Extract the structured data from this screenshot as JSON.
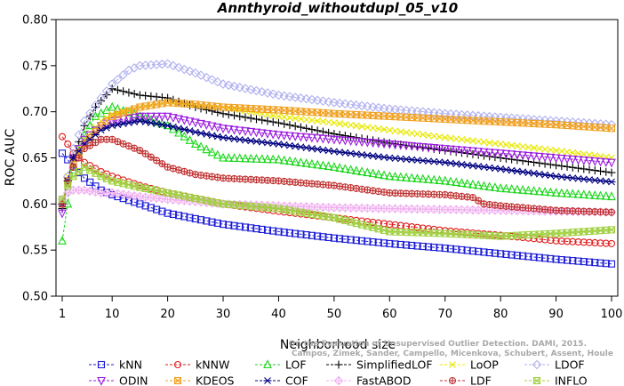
{
  "chart_data": {
    "type": "line",
    "title": "Annthyroid_withoutdupl_05_v10",
    "xlabel": "Neighborhood size",
    "ylabel": "ROC AUC",
    "xlim": [
      1,
      100
    ],
    "ylim": [
      0.5,
      0.8
    ],
    "xticks": [
      1,
      10,
      20,
      30,
      40,
      50,
      60,
      70,
      80,
      90,
      100
    ],
    "yticks": [
      "0.50",
      "0.55",
      "0.60",
      "0.65",
      "0.70",
      "0.75",
      "0.80"
    ],
    "grid": false,
    "legend_position": "bottom",
    "watermark": [
      "Campos, Zimek, Sander, Campello, Micenkova, Schubert, Assent, Houle",
      "On the Evaluation of Unsupervised Outlier Detection. DAMI, 2015."
    ],
    "series": [
      {
        "name": "kNN",
        "color": "#1a1ad6",
        "marker": "square",
        "points": [
          [
            1,
            0.655
          ],
          [
            2,
            0.648
          ],
          [
            3,
            0.64
          ],
          [
            5,
            0.628
          ],
          [
            8,
            0.615
          ],
          [
            10,
            0.61
          ],
          [
            15,
            0.6
          ],
          [
            20,
            0.59
          ],
          [
            30,
            0.578
          ],
          [
            40,
            0.57
          ],
          [
            50,
            0.563
          ],
          [
            60,
            0.557
          ],
          [
            70,
            0.552
          ],
          [
            80,
            0.546
          ],
          [
            90,
            0.54
          ],
          [
            100,
            0.535
          ]
        ]
      },
      {
        "name": "kNNW",
        "color": "#e01a1a",
        "marker": "circle",
        "points": [
          [
            1,
            0.673
          ],
          [
            2,
            0.665
          ],
          [
            3,
            0.655
          ],
          [
            5,
            0.645
          ],
          [
            8,
            0.635
          ],
          [
            10,
            0.63
          ],
          [
            15,
            0.62
          ],
          [
            20,
            0.612
          ],
          [
            30,
            0.6
          ],
          [
            40,
            0.592
          ],
          [
            50,
            0.585
          ],
          [
            60,
            0.578
          ],
          [
            70,
            0.571
          ],
          [
            80,
            0.566
          ],
          [
            90,
            0.56
          ],
          [
            100,
            0.557
          ]
        ]
      },
      {
        "name": "LOF",
        "color": "#1ad61a",
        "marker": "triangle-up",
        "points": [
          [
            1,
            0.56
          ],
          [
            2,
            0.6
          ],
          [
            3,
            0.64
          ],
          [
            5,
            0.675
          ],
          [
            7,
            0.695
          ],
          [
            10,
            0.705
          ],
          [
            15,
            0.695
          ],
          [
            20,
            0.685
          ],
          [
            25,
            0.665
          ],
          [
            30,
            0.65
          ],
          [
            40,
            0.648
          ],
          [
            50,
            0.64
          ],
          [
            60,
            0.63
          ],
          [
            70,
            0.625
          ],
          [
            80,
            0.617
          ],
          [
            90,
            0.612
          ],
          [
            100,
            0.608
          ]
        ]
      },
      {
        "name": "SimplifiedLOF",
        "color": "#000000",
        "marker": "plus",
        "points": [
          [
            1,
            0.595
          ],
          [
            2,
            0.625
          ],
          [
            3,
            0.65
          ],
          [
            5,
            0.685
          ],
          [
            7,
            0.705
          ],
          [
            10,
            0.725
          ],
          [
            15,
            0.718
          ],
          [
            20,
            0.715
          ],
          [
            25,
            0.705
          ],
          [
            30,
            0.698
          ],
          [
            40,
            0.688
          ],
          [
            50,
            0.676
          ],
          [
            60,
            0.666
          ],
          [
            70,
            0.658
          ],
          [
            80,
            0.65
          ],
          [
            90,
            0.642
          ],
          [
            100,
            0.634
          ]
        ]
      },
      {
        "name": "LoOP",
        "color": "#e8e800",
        "marker": "x",
        "points": [
          [
            1,
            0.6
          ],
          [
            2,
            0.63
          ],
          [
            3,
            0.65
          ],
          [
            5,
            0.67
          ],
          [
            8,
            0.69
          ],
          [
            10,
            0.697
          ],
          [
            15,
            0.705
          ],
          [
            20,
            0.71
          ],
          [
            30,
            0.705
          ],
          [
            40,
            0.695
          ],
          [
            50,
            0.688
          ],
          [
            60,
            0.68
          ],
          [
            70,
            0.672
          ],
          [
            80,
            0.665
          ],
          [
            90,
            0.658
          ],
          [
            100,
            0.65
          ]
        ]
      },
      {
        "name": "LDOF",
        "color": "#b0b0f0",
        "marker": "diamond",
        "points": [
          [
            1,
            0.6
          ],
          [
            2,
            0.63
          ],
          [
            3,
            0.66
          ],
          [
            5,
            0.69
          ],
          [
            8,
            0.715
          ],
          [
            10,
            0.73
          ],
          [
            13,
            0.745
          ],
          [
            15,
            0.75
          ],
          [
            20,
            0.752
          ],
          [
            25,
            0.742
          ],
          [
            30,
            0.73
          ],
          [
            40,
            0.718
          ],
          [
            50,
            0.71
          ],
          [
            60,
            0.703
          ],
          [
            70,
            0.698
          ],
          [
            80,
            0.694
          ],
          [
            90,
            0.69
          ],
          [
            100,
            0.686
          ]
        ]
      },
      {
        "name": "ODIN",
        "color": "#9a1ae0",
        "marker": "triangle-down",
        "points": [
          [
            1,
            0.59
          ],
          [
            2,
            0.625
          ],
          [
            3,
            0.65
          ],
          [
            5,
            0.67
          ],
          [
            8,
            0.685
          ],
          [
            10,
            0.69
          ],
          [
            15,
            0.695
          ],
          [
            20,
            0.695
          ],
          [
            30,
            0.682
          ],
          [
            40,
            0.675
          ],
          [
            50,
            0.67
          ],
          [
            60,
            0.665
          ],
          [
            70,
            0.66
          ],
          [
            80,
            0.655
          ],
          [
            90,
            0.65
          ],
          [
            100,
            0.645
          ]
        ]
      },
      {
        "name": "KDEOS",
        "color": "#f0a020",
        "marker": "square-x",
        "points": [
          [
            1,
            0.6
          ],
          [
            2,
            0.625
          ],
          [
            3,
            0.645
          ],
          [
            5,
            0.665
          ],
          [
            8,
            0.685
          ],
          [
            10,
            0.695
          ],
          [
            15,
            0.705
          ],
          [
            20,
            0.71
          ],
          [
            25,
            0.708
          ],
          [
            30,
            0.705
          ],
          [
            40,
            0.702
          ],
          [
            50,
            0.698
          ],
          [
            60,
            0.695
          ],
          [
            70,
            0.692
          ],
          [
            80,
            0.689
          ],
          [
            90,
            0.686
          ],
          [
            100,
            0.682
          ]
        ]
      },
      {
        "name": "COF",
        "color": "#000080",
        "marker": "asterisk",
        "points": [
          [
            1,
            0.6
          ],
          [
            2,
            0.625
          ],
          [
            3,
            0.65
          ],
          [
            5,
            0.665
          ],
          [
            8,
            0.68
          ],
          [
            10,
            0.685
          ],
          [
            15,
            0.69
          ],
          [
            20,
            0.685
          ],
          [
            25,
            0.678
          ],
          [
            30,
            0.672
          ],
          [
            40,
            0.665
          ],
          [
            50,
            0.657
          ],
          [
            60,
            0.65
          ],
          [
            70,
            0.645
          ],
          [
            80,
            0.638
          ],
          [
            90,
            0.63
          ],
          [
            100,
            0.624
          ]
        ]
      },
      {
        "name": "FastABOD",
        "color": "#f0b0f0",
        "marker": "diamond-plus",
        "points": [
          [
            1,
            0.605
          ],
          [
            2,
            0.612
          ],
          [
            3,
            0.615
          ],
          [
            5,
            0.615
          ],
          [
            8,
            0.612
          ],
          [
            10,
            0.612
          ],
          [
            15,
            0.608
          ],
          [
            20,
            0.605
          ],
          [
            30,
            0.6
          ],
          [
            40,
            0.598
          ],
          [
            50,
            0.596
          ],
          [
            60,
            0.595
          ],
          [
            70,
            0.594
          ],
          [
            80,
            0.593
          ],
          [
            90,
            0.592
          ],
          [
            100,
            0.591
          ]
        ]
      },
      {
        "name": "LDF",
        "color": "#c03030",
        "marker": "circle-plus",
        "points": [
          [
            1,
            0.6
          ],
          [
            2,
            0.622
          ],
          [
            3,
            0.64
          ],
          [
            5,
            0.66
          ],
          [
            8,
            0.67
          ],
          [
            10,
            0.67
          ],
          [
            15,
            0.658
          ],
          [
            20,
            0.64
          ],
          [
            25,
            0.632
          ],
          [
            30,
            0.628
          ],
          [
            40,
            0.625
          ],
          [
            50,
            0.62
          ],
          [
            60,
            0.612
          ],
          [
            70,
            0.61
          ],
          [
            75,
            0.607
          ],
          [
            77,
            0.6
          ],
          [
            80,
            0.598
          ],
          [
            90,
            0.593
          ],
          [
            100,
            0.591
          ]
        ]
      },
      {
        "name": "INFLO",
        "color": "#a0d040",
        "marker": "square-cross",
        "points": [
          [
            1,
            0.605
          ],
          [
            2,
            0.62
          ],
          [
            3,
            0.63
          ],
          [
            5,
            0.64
          ],
          [
            8,
            0.63
          ],
          [
            10,
            0.625
          ],
          [
            15,
            0.618
          ],
          [
            20,
            0.612
          ],
          [
            30,
            0.6
          ],
          [
            40,
            0.595
          ],
          [
            50,
            0.585
          ],
          [
            60,
            0.57
          ],
          [
            70,
            0.568
          ],
          [
            80,
            0.565
          ],
          [
            90,
            0.568
          ],
          [
            100,
            0.572
          ]
        ]
      }
    ],
    "legend_order": [
      [
        "kNN",
        "kNNW",
        "LOF",
        "SimplifiedLOF",
        "LoOP",
        "LDOF"
      ],
      [
        "ODIN",
        "KDEOS",
        "COF",
        "FastABOD",
        "LDF",
        "INFLO"
      ]
    ]
  }
}
